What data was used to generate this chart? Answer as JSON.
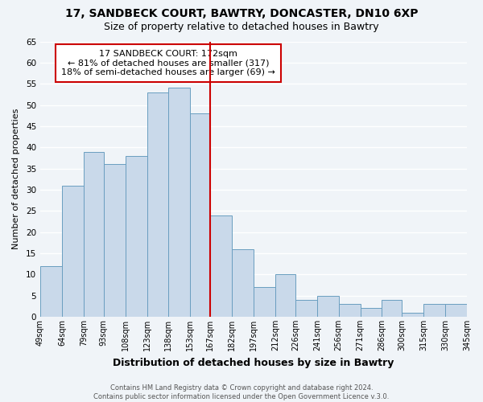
{
  "title": "17, SANDBECK COURT, BAWTRY, DONCASTER, DN10 6XP",
  "subtitle": "Size of property relative to detached houses in Bawtry",
  "xlabel": "Distribution of detached houses by size in Bawtry",
  "ylabel": "Number of detached properties",
  "bar_color": "#c9d9ea",
  "bar_edge_color": "#6a9ec0",
  "background_color": "#f0f4f8",
  "grid_color": "#ffffff",
  "annotation_line_color": "#cc0000",
  "annotation_box_edge": "#cc0000",
  "annotation_text_line1": "17 SANDBECK COURT: 172sqm",
  "annotation_text_line2": "← 81% of detached houses are smaller (317)",
  "annotation_text_line3": "18% of semi-detached houses are larger (69) →",
  "red_line_x": 167,
  "bins": [
    49,
    64,
    79,
    93,
    108,
    123,
    138,
    153,
    167,
    182,
    197,
    212,
    226,
    241,
    256,
    271,
    286,
    300,
    315,
    330,
    345
  ],
  "counts": [
    12,
    31,
    39,
    36,
    38,
    53,
    54,
    48,
    24,
    16,
    7,
    10,
    4,
    5,
    3,
    2,
    4,
    1,
    3,
    3
  ],
  "tick_labels": [
    "49sqm",
    "64sqm",
    "79sqm",
    "93sqm",
    "108sqm",
    "123sqm",
    "138sqm",
    "153sqm",
    "167sqm",
    "182sqm",
    "197sqm",
    "212sqm",
    "226sqm",
    "241sqm",
    "256sqm",
    "271sqm",
    "286sqm",
    "300sqm",
    "315sqm",
    "330sqm",
    "345sqm"
  ],
  "footer_line1": "Contains HM Land Registry data © Crown copyright and database right 2024.",
  "footer_line2": "Contains public sector information licensed under the Open Government Licence v.3.0.",
  "ylim": [
    0,
    65
  ],
  "yticks": [
    0,
    5,
    10,
    15,
    20,
    25,
    30,
    35,
    40,
    45,
    50,
    55,
    60,
    65
  ]
}
